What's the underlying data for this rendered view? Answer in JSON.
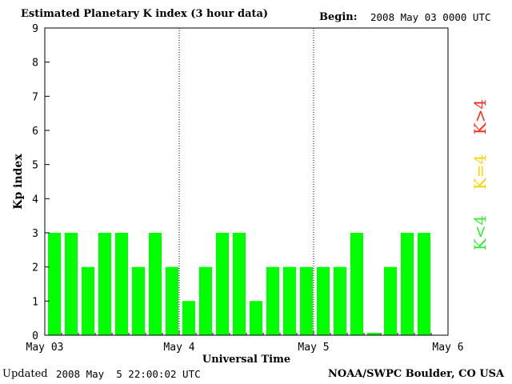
{
  "header": {
    "title": "Estimated Planetary K index (3 hour data)",
    "begin_label": "Begin:",
    "begin_value": "2008 May 03 0000 UTC"
  },
  "footer": {
    "updated_label": "Updated",
    "updated_value": "2008 May  5 22:00:02 UTC",
    "org": "NOAA/SWPC Boulder, CO USA"
  },
  "legend": [
    {
      "label": "K>4",
      "color": "#ff2a1a"
    },
    {
      "label": "K=4",
      "color": "#ffd200"
    },
    {
      "label": "K<4",
      "color": "#33ee33"
    }
  ],
  "chart_data": {
    "type": "bar",
    "title": "Estimated Planetary K index (3 hour data)",
    "xlabel": "Universal Time",
    "ylabel": "Kp index",
    "ylim": [
      0,
      9
    ],
    "yticks": [
      0,
      1,
      2,
      3,
      4,
      5,
      6,
      7,
      8,
      9
    ],
    "xtick_labels": [
      "May 03",
      "May 4",
      "May 5",
      "May 6"
    ],
    "day_separators": [
      "May 4",
      "May 5"
    ],
    "bar_color": "#00ff00",
    "series": [
      {
        "values": [
          3,
          3,
          2,
          3,
          3,
          2,
          3,
          2,
          1,
          2,
          3,
          3,
          1,
          2,
          2,
          2,
          2,
          2,
          3,
          0,
          2,
          3,
          3
        ]
      }
    ]
  }
}
